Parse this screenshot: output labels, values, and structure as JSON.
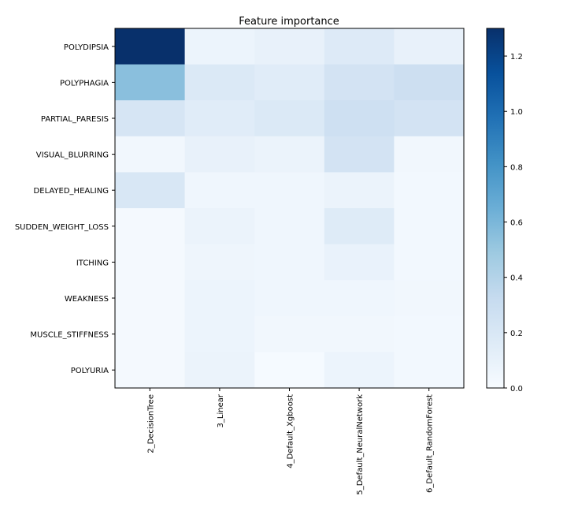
{
  "chart_data": {
    "type": "heatmap",
    "title": "Feature importance",
    "x_categories": [
      "2_DecisionTree",
      "3_Linear",
      "4_Default_Xgboost",
      "5_Default_NeuralNetwork",
      "6_Default_RandomForest"
    ],
    "y_categories": [
      "POLYDIPSIA",
      "POLYPHAGIA",
      "PARTIAL_PARESIS",
      "VISUAL_BLURRING",
      "DELAYED_HEALING",
      "SUDDEN_WEIGHT_LOSS",
      "ITCHING",
      "WEAKNESS",
      "MUSCLE_STIFFNESS",
      "POLYURIA"
    ],
    "values": [
      [
        1.3,
        0.07,
        0.1,
        0.17,
        0.1
      ],
      [
        0.55,
        0.18,
        0.15,
        0.24,
        0.28
      ],
      [
        0.22,
        0.15,
        0.18,
        0.27,
        0.24
      ],
      [
        0.04,
        0.1,
        0.08,
        0.24,
        0.04
      ],
      [
        0.2,
        0.05,
        0.05,
        0.08,
        0.03
      ],
      [
        0.02,
        0.08,
        0.05,
        0.16,
        0.03
      ],
      [
        0.02,
        0.06,
        0.05,
        0.09,
        0.03
      ],
      [
        0.02,
        0.07,
        0.05,
        0.05,
        0.04
      ],
      [
        0.02,
        0.07,
        0.04,
        0.04,
        0.03
      ],
      [
        0.02,
        0.08,
        0.01,
        0.07,
        0.03
      ]
    ],
    "colorbar": {
      "colormap": "Blues",
      "vmin": 0.0,
      "vmax": 1.3,
      "ticks": [
        "0.0",
        "0.2",
        "0.4",
        "0.6",
        "0.8",
        "1.0",
        "1.2"
      ]
    }
  }
}
